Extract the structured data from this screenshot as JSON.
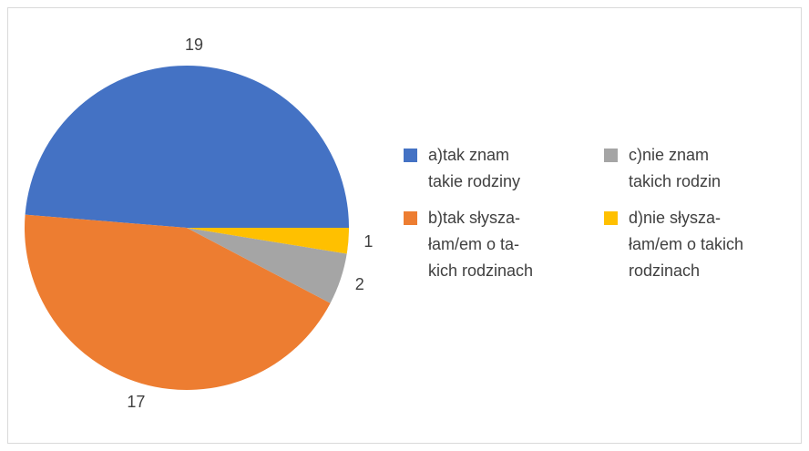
{
  "chart_data": {
    "type": "pie",
    "categories": [
      "a)tak znam\ntakie rodziny",
      "b)tak słysza-\nłam/em o ta-\nkich rodzinach",
      "c)nie znam\ntakich rodzin",
      "d)nie  słysza-\nłam/em o takich\nrodzinach"
    ],
    "values": [
      19,
      17,
      2,
      1
    ],
    "colors": [
      "#4472c4",
      "#ed7d31",
      "#a5a5a5",
      "#ffc000"
    ],
    "legend": "right"
  }
}
